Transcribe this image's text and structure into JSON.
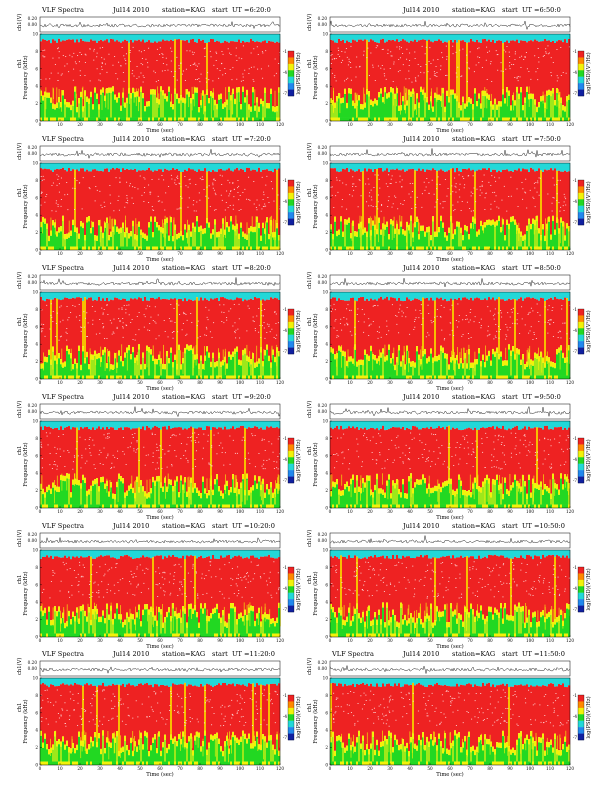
{
  "figure": {
    "panels": [
      {
        "title": {
          "left": "VLF Spectra",
          "date": "Jul14 2010",
          "station": "station=KAG",
          "ut": "start  UT =6:20:0"
        }
      },
      {
        "title": {
          "left": "",
          "date": "Jul14 2010",
          "station": "station=KAG",
          "ut": "start  UT =6:50:0"
        }
      },
      {
        "title": {
          "left": "VLF Spectra",
          "date": "Jul14 2010",
          "station": "station=KAG",
          "ut": "start  UT =7:20:0"
        }
      },
      {
        "title": {
          "left": "",
          "date": "Jul14 2010",
          "station": "station=KAG",
          "ut": "start  UT =7:50:0"
        }
      },
      {
        "title": {
          "left": "VLF Spectra",
          "date": "Jul14 2010",
          "station": "station=KAG",
          "ut": "start  UT =8:20:0"
        }
      },
      {
        "title": {
          "left": "",
          "date": "Jul14 2010",
          "station": "station=KAG",
          "ut": "start  UT =8:50:0"
        }
      },
      {
        "title": {
          "left": "VLF Spectra",
          "date": "Jul14 2010",
          "station": "station=KAG",
          "ut": "start  UT =9:20:0"
        }
      },
      {
        "title": {
          "left": "",
          "date": "Jul14 2010",
          "station": "station=KAG",
          "ut": "start  UT =9:50:0"
        }
      },
      {
        "title": {
          "left": "VLF Spectra",
          "date": "Jul14 2010",
          "station": "station=KAG",
          "ut": "start  UT =10:20:0"
        }
      },
      {
        "title": {
          "left": "",
          "date": "Jul14 2010",
          "station": "station=KAG",
          "ut": "start  UT =10:50:0"
        }
      },
      {
        "title": {
          "left": "VLF Spectra",
          "date": "Jul14 2010",
          "station": "station=KAG",
          "ut": "start  UT =11:20:0"
        }
      },
      {
        "title": {
          "left": "VLF Spectra",
          "date": "Jul14 2010",
          "station": "station=KAG",
          "ut": "start  UT =11:50:0"
        }
      }
    ]
  },
  "chart_data": {
    "type": "heatmap",
    "xlabel": "Time (sec)",
    "x_ticks": [
      0,
      10,
      20,
      30,
      40,
      50,
      60,
      70,
      80,
      90,
      100,
      110,
      120
    ],
    "xlim": [
      0,
      120
    ],
    "ch1_label": "ch1(V)",
    "ch1_ticks": [
      "0.20",
      "0.00"
    ],
    "ylabel": "Frequency (kHz)",
    "ylabel_prefix": "ch1",
    "y_ticks": [
      0,
      2,
      4,
      6,
      8,
      10
    ],
    "ylim": [
      0,
      10
    ],
    "colorbar_label": "log(PSD)(V²/Hz)",
    "colorbar_ticks": [
      "-1",
      "-4",
      "-7"
    ],
    "colors": {
      "high": "#ee2222",
      "mid": "#f2f20a",
      "low": "#22d822",
      "base": "#22d8d8",
      "trace": "#222222"
    },
    "band_profile_kHz": [
      {
        "from": 0,
        "to": 1,
        "level": "green"
      },
      {
        "from": 1,
        "to": 3,
        "level": "green-yellow"
      },
      {
        "from": 3,
        "to": 9.3,
        "level": "red"
      },
      {
        "from": 9.3,
        "to": 10,
        "level": "cyan"
      }
    ]
  }
}
